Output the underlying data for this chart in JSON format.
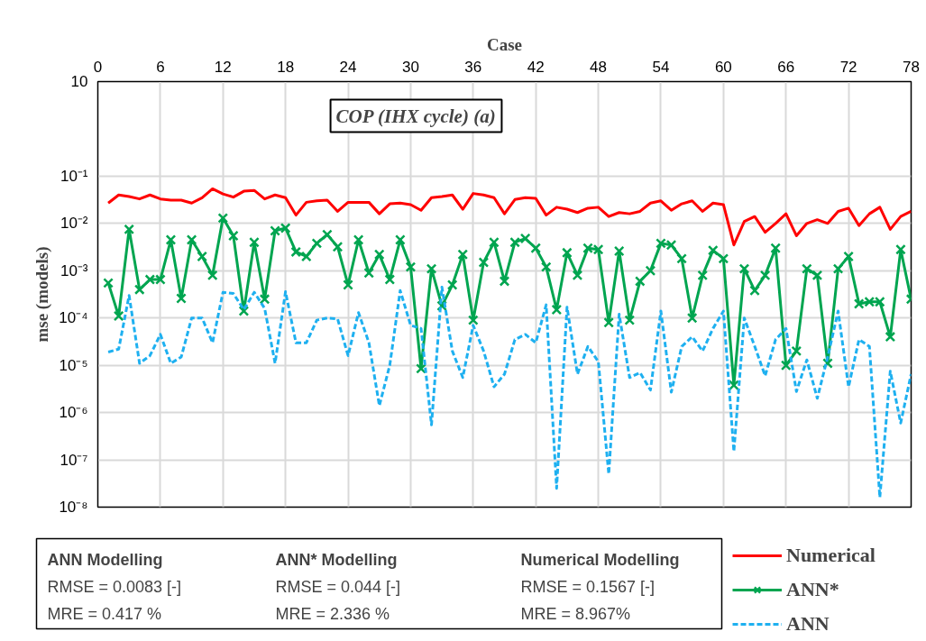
{
  "chart_data": {
    "type": "line",
    "title": "COP (IHX cycle) (a)",
    "xlabel": "Case",
    "ylabel": "mse (models)",
    "log": true,
    "grid": true,
    "legend": "bottom right",
    "x": [
      1,
      2,
      3,
      4,
      5,
      6,
      7,
      8,
      9,
      10,
      11,
      12,
      13,
      14,
      15,
      16,
      17,
      18,
      19,
      20,
      21,
      22,
      23,
      24,
      25,
      26,
      27,
      28,
      29,
      30,
      31,
      32,
      33,
      34,
      35,
      36,
      37,
      38,
      39,
      40,
      41,
      42,
      43,
      44,
      45,
      46,
      47,
      48,
      49,
      50,
      51,
      52,
      53,
      54,
      55,
      56,
      57,
      58,
      59,
      60,
      61,
      62,
      63,
      64,
      65,
      66,
      67,
      68,
      69,
      70,
      71,
      72,
      73,
      74,
      75,
      76,
      77,
      78
    ],
    "xlim": [
      0,
      78
    ],
    "xticks": [
      0,
      6,
      12,
      18,
      24,
      30,
      36,
      42,
      48,
      54,
      60,
      66,
      72,
      78
    ],
    "ylim": [
      1e-08,
      10
    ],
    "yticks": [
      {
        "value": 1e-08,
        "label": "10⁻⁸"
      },
      {
        "value": 1e-07,
        "label": "10⁻⁷"
      },
      {
        "value": 1e-06,
        "label": "10⁻⁶"
      },
      {
        "value": 1e-05,
        "label": "10⁻⁵"
      },
      {
        "value": 0.0001,
        "label": "10⁻⁴"
      },
      {
        "value": 0.001,
        "label": "10⁻³"
      },
      {
        "value": 0.01,
        "label": "10⁻²"
      },
      {
        "value": 0.1,
        "label": "10⁻¹"
      },
      10
    ],
    "series": [
      {
        "name": "Numerical",
        "color": "#ff0000",
        "marker": "none",
        "line_style": "solid",
        "values": [
          0.027,
          0.04,
          0.037,
          0.033,
          0.04,
          0.033,
          0.031,
          0.031,
          0.027,
          0.035,
          0.054,
          0.042,
          0.036,
          0.048,
          0.05,
          0.033,
          0.04,
          0.035,
          0.015,
          0.028,
          0.03,
          0.031,
          0.018,
          0.028,
          0.028,
          0.028,
          0.016,
          0.026,
          0.027,
          0.025,
          0.019,
          0.035,
          0.037,
          0.04,
          0.02,
          0.043,
          0.04,
          0.035,
          0.016,
          0.032,
          0.035,
          0.034,
          0.015,
          0.022,
          0.02,
          0.017,
          0.021,
          0.022,
          0.014,
          0.017,
          0.016,
          0.018,
          0.027,
          0.03,
          0.019,
          0.026,
          0.03,
          0.018,
          0.027,
          0.025,
          0.0035,
          0.011,
          0.014,
          0.0065,
          0.01,
          0.016,
          0.0055,
          0.01,
          0.012,
          0.01,
          0.018,
          0.021,
          0.009,
          0.016,
          0.022,
          0.0075,
          0.014,
          0.018
        ]
      },
      {
        "name": "ANN*",
        "color": "#00a550",
        "marker": "cross",
        "line_style": "solid",
        "values": [
          0.00055,
          0.00011,
          0.0075,
          0.0004,
          0.00065,
          0.00065,
          0.0045,
          0.00026,
          0.0045,
          0.002,
          0.0008,
          0.013,
          0.0055,
          0.00014,
          0.004,
          0.00025,
          0.007,
          0.008,
          0.0025,
          0.002,
          0.0038,
          0.0058,
          0.0032,
          0.0005,
          0.0045,
          0.0009,
          0.0022,
          0.00065,
          0.0045,
          0.0012,
          8.5e-06,
          0.0011,
          0.00018,
          0.0005,
          0.0022,
          9e-05,
          0.0015,
          0.004,
          0.0006,
          0.004,
          0.0048,
          0.003,
          0.0012,
          0.00015,
          0.0024,
          0.0008,
          0.003,
          0.0028,
          8e-05,
          0.0026,
          9e-05,
          0.0006,
          0.001,
          0.0038,
          0.0035,
          0.0018,
          0.0001,
          0.0008,
          0.0027,
          0.0018,
          3.8e-06,
          0.0011,
          0.00038,
          0.0008,
          0.003,
          1e-05,
          2e-05,
          0.0011,
          0.0008,
          1.1e-05,
          0.0011,
          0.002,
          0.0002,
          0.00022,
          0.00022,
          4e-05,
          0.0028,
          0.00025
        ]
      },
      {
        "name": "ANN",
        "color": "#1eb0f0",
        "marker": "none",
        "line_style": "dashed",
        "values": [
          1.9e-05,
          2.2e-05,
          0.0003,
          1.1e-05,
          1.6e-05,
          4.5e-05,
          1.1e-05,
          1.5e-05,
          0.0001,
          0.0001,
          3e-05,
          0.00035,
          0.00033,
          0.00015,
          0.00035,
          0.00016,
          1.1e-05,
          0.00036,
          3e-05,
          3e-05,
          9e-05,
          0.0001,
          9.5e-05,
          1.6e-05,
          0.00013,
          3e-05,
          1.4e-06,
          1e-05,
          0.00038,
          7e-05,
          6e-05,
          5.5e-07,
          0.00045,
          2e-05,
          5.5e-06,
          7e-05,
          2e-05,
          3.5e-06,
          6.5e-06,
          3.5e-05,
          4.5e-05,
          3e-05,
          0.00019,
          2.5e-08,
          0.00017,
          6.5e-06,
          2.5e-05,
          1.2e-05,
          5e-08,
          0.00012,
          5.5e-06,
          7e-06,
          3e-06,
          0.00014,
          2.7e-06,
          2.5e-05,
          4e-05,
          2e-05,
          6e-05,
          0.00014,
          1.5e-07,
          0.0001,
          2.5e-05,
          6e-06,
          3.5e-05,
          6e-05,
          2.8e-06,
          1.3e-05,
          2e-06,
          1.5e-05,
          0.00014,
          3.5e-06,
          3.5e-05,
          2.5e-05,
          1.6e-08,
          7.5e-06,
          6e-07,
          6.5e-06
        ]
      }
    ],
    "annotations": [
      "ANN Modelling",
      "RMSE = 0.0083 [-]",
      "MRE = 0.417 %",
      "ANN* Modelling",
      "RMSE = 0.044 [-]",
      "MRE = 2.336 %",
      "Numerical Modelling",
      "RMSE = 0.1567 [-]",
      "MRE = 8.967%"
    ]
  }
}
